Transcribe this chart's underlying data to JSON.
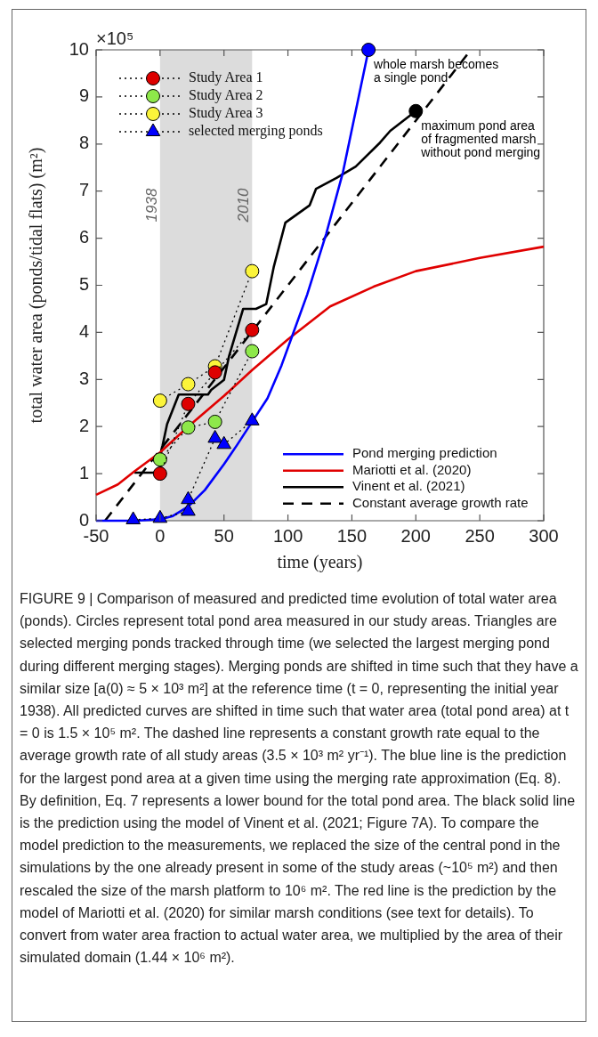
{
  "chart_data": {
    "type": "line",
    "xlabel": "time (years)",
    "ylabel": "total water area (ponds/tidal flats) (m²)",
    "xlim": [
      -50,
      300
    ],
    "xticks": [
      -50,
      0,
      50,
      100,
      150,
      200,
      250,
      300
    ],
    "ylim": [
      0,
      10
    ],
    "yticks": [
      0,
      1,
      2,
      3,
      4,
      5,
      6,
      7,
      8,
      9,
      10
    ],
    "legend": "bottom right",
    "bands": [
      {
        "axis": "x",
        "from": 0,
        "to": 72,
        "color": "#dcdcdc"
      }
    ],
    "series": [
      {
        "name": "Study Area 1",
        "marker": "circle",
        "line_style": "dotted",
        "color": "#dd0000",
        "x": [
          0,
          22,
          43,
          72
        ],
        "values": [
          1.0,
          2.48,
          3.15,
          4.05
        ]
      },
      {
        "name": "Study Area 2",
        "marker": "circle",
        "line_style": "dotted",
        "color": "#8ee84a",
        "x": [
          0,
          22,
          43,
          72
        ],
        "values": [
          1.3,
          1.98,
          2.1,
          3.6
        ]
      },
      {
        "name": "Study Area 3",
        "marker": "circle",
        "line_style": "dotted",
        "color": "#fbf43a",
        "x": [
          0,
          22,
          43,
          72
        ],
        "values": [
          2.55,
          2.9,
          3.28,
          5.3
        ]
      },
      {
        "name": "selected merging ponds",
        "marker": "triangle",
        "line_style": "dotted",
        "color": "#0000ff",
        "x": [
          -21,
          0,
          22,
          22,
          43,
          50,
          72
        ],
        "values": [
          0.02,
          0.05,
          0.2,
          0.45,
          1.75,
          1.62,
          2.12
        ]
      },
      {
        "type": "scatter",
        "marker": "circle",
        "color": "#0000ff",
        "x": [
          163
        ],
        "values": [
          10
        ]
      },
      {
        "type": "scatter",
        "marker": "circle",
        "color": "#000000",
        "x": [
          200
        ],
        "values": [
          8.7
        ]
      },
      {
        "name": "Pond merging prediction",
        "line_style": "solid",
        "color": "#0000ff",
        "x": [
          -50,
          -20,
          0,
          10,
          22,
          35,
          50,
          60,
          72,
          84,
          95,
          103,
          115,
          130,
          143,
          163
        ],
        "values": [
          0,
          0,
          0.03,
          0.1,
          0.3,
          0.65,
          1.2,
          1.6,
          2.1,
          2.6,
          3.3,
          3.9,
          4.8,
          6.1,
          7.4,
          10
        ]
      },
      {
        "name": "Mariotti et al. (2020)",
        "line_style": "solid",
        "color": "#e00000",
        "x": [
          -50,
          -33,
          -20,
          0,
          22,
          50,
          72,
          100,
          133,
          167,
          200,
          250,
          300
        ],
        "values": [
          0.55,
          0.77,
          1.05,
          1.45,
          2.0,
          2.65,
          3.2,
          3.85,
          4.55,
          4.97,
          5.3,
          5.58,
          5.82
        ]
      },
      {
        "name": "Vinent et al. (2021)",
        "line_style": "solid",
        "color": "#000000",
        "x": [
          -20,
          0,
          1,
          2,
          5.5,
          14.6,
          37.5,
          40,
          50,
          54,
          65,
          75,
          83,
          89,
          98,
          117,
          122,
          138,
          153,
          172,
          180,
          200
        ],
        "values": [
          1.02,
          1.02,
          1.5,
          1.6,
          2.05,
          2.68,
          2.68,
          2.78,
          2.99,
          3.5,
          4.5,
          4.5,
          4.6,
          5.4,
          6.33,
          6.7,
          7.05,
          7.28,
          7.52,
          8.03,
          8.28,
          8.7
        ]
      },
      {
        "name": "Constant average growth rate",
        "line_style": "dashed",
        "color": "#000000",
        "x": [
          -43,
          243
        ],
        "values": [
          0,
          10
        ]
      }
    ],
    "annotations": [
      "×10⁵",
      {
        "text": "1938",
        "x": 0,
        "y": 6.7
      },
      {
        "text": "2010",
        "x": 72,
        "y": 6.7
      },
      {
        "text": "whole marsh becomes a single pond",
        "x": 163,
        "y": 10
      },
      {
        "text": "maximum pond area of fragmented marsh without pond merging",
        "x": 200,
        "y": 8.7
      },
      "FIGURE 9 | Comparison of measured and predicted time evolution of total water area (ponds). Circles represent total pond area measured in our study areas. Triangles are selected merging ponds tracked through time (we selected the largest merging pond during different merging stages). Merging ponds are shifted in time such that they have a similar size [a(0) ≈ 5 × 10³ m²] at the reference time (t = 0, representing the initial year 1938). All predicted curves are shifted in time such that water area (total pond area) at t = 0 is 1.5 × 10⁵ m². The dashed line represents a constant growth rate equal to the average growth rate of all study areas (3.5 × 10³ m² yr⁻¹). The blue line is the prediction for the largest pond area at a given time using the merging rate approximation (Eq. 8). By definition, Eq. 7 represents a lower bound for the total pond area. The black solid line is the prediction using the model of Vinent et al. (2021; Figure 7A). To compare the model prediction to the measurements, we replaced the size of the central pond in the simulations by the one already present in some of the study areas (~10⁵ m²) and then rescaled the size of the marsh platform to 10⁶ m². The red line is the prediction by the model of Mariotti et al. (2020) for similar marsh conditions (see text for details). To convert from water area fraction to actual water area, we multiplied by the area of their simulated domain (1.44 × 10⁶ m²)."
    ]
  }
}
